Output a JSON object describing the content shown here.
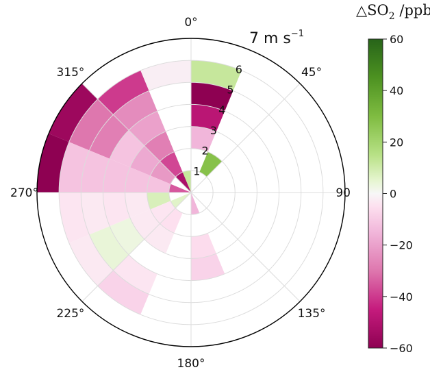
{
  "chart_data": {
    "type": "heatmap",
    "subtype": "polar",
    "title": "",
    "angular_axis": {
      "direction": "clockwise",
      "zero_at": "top",
      "tick_labels": [
        "0°",
        "45°",
        "90",
        "135°",
        "180°",
        "225°",
        "270°",
        "315°"
      ]
    },
    "radial_axis": {
      "tick_labels": [
        "1",
        "2",
        "3",
        "4",
        "5",
        "6",
        "7"
      ],
      "unit_label": "m s",
      "unit_exponent": "−1",
      "range": [
        0,
        7
      ]
    },
    "direction_bin_width_deg": 22.5,
    "speed_bin_width": 1,
    "cells": [
      {
        "dir": 0,
        "speed": 6,
        "value": 12
      },
      {
        "dir": 0,
        "speed": 5,
        "value": -60
      },
      {
        "dir": 0,
        "speed": 4,
        "value": -48
      },
      {
        "dir": 0,
        "speed": 3,
        "value": -15
      },
      {
        "dir": 22.5,
        "speed": 2,
        "value": 28
      },
      {
        "dir": 337.5,
        "speed": 1,
        "value": 12
      },
      {
        "dir": 337.5,
        "speed": 6,
        "value": -2
      },
      {
        "dir": 315,
        "speed": 1,
        "value": -52
      },
      {
        "dir": 315,
        "speed": 2,
        "value": -38
      },
      {
        "dir": 315,
        "speed": 3,
        "value": -28
      },
      {
        "dir": 315,
        "speed": 4,
        "value": -20
      },
      {
        "dir": 315,
        "speed": 5,
        "value": -25
      },
      {
        "dir": 315,
        "speed": 6,
        "value": -40
      },
      {
        "dir": 292.5,
        "speed": 2,
        "value": -22
      },
      {
        "dir": 292.5,
        "speed": 3,
        "value": -18
      },
      {
        "dir": 292.5,
        "speed": 4,
        "value": -12
      },
      {
        "dir": 292.5,
        "speed": 5,
        "value": -28
      },
      {
        "dir": 292.5,
        "speed": 6,
        "value": -30
      },
      {
        "dir": 292.5,
        "speed": 7,
        "value": -56
      },
      {
        "dir": 270,
        "speed": 1,
        "value": -35
      },
      {
        "dir": 270,
        "speed": 2,
        "value": -12
      },
      {
        "dir": 270,
        "speed": 3,
        "value": -12
      },
      {
        "dir": 270,
        "speed": 4,
        "value": -12
      },
      {
        "dir": 270,
        "speed": 5,
        "value": -12
      },
      {
        "dir": 270,
        "speed": 6,
        "value": -12
      },
      {
        "dir": 270,
        "speed": 7,
        "value": -60
      },
      {
        "dir": 247.5,
        "speed": 2,
        "value": 8
      },
      {
        "dir": 247.5,
        "speed": 3,
        "value": -3
      },
      {
        "dir": 247.5,
        "speed": 4,
        "value": -4
      },
      {
        "dir": 247.5,
        "speed": 5,
        "value": -3
      },
      {
        "dir": 247.5,
        "speed": 6,
        "value": -4
      },
      {
        "dir": 225,
        "speed": 1,
        "value": 6
      },
      {
        "dir": 225,
        "speed": 2,
        "value": -4
      },
      {
        "dir": 225,
        "speed": 3,
        "value": -3
      },
      {
        "dir": 225,
        "speed": 4,
        "value": 3
      },
      {
        "dir": 225,
        "speed": 5,
        "value": 4
      },
      {
        "dir": 225,
        "speed": 6,
        "value": -3
      },
      {
        "dir": 202.5,
        "speed": 2,
        "value": -5
      },
      {
        "dir": 202.5,
        "speed": 3,
        "value": -3
      },
      {
        "dir": 202.5,
        "speed": 5,
        "value": -4
      },
      {
        "dir": 202.5,
        "speed": 6,
        "value": -8
      },
      {
        "dir": 157.5,
        "speed": 1,
        "value": -15
      },
      {
        "dir": 157.5,
        "speed": 3,
        "value": -6
      },
      {
        "dir": 157.5,
        "speed": 4,
        "value": -8
      }
    ],
    "colorbar": {
      "title_main": "△SO",
      "title_sub": "2",
      "title_units": " /ppb",
      "range": [
        -60,
        60
      ],
      "tick_values": [
        60,
        40,
        20,
        0,
        -20,
        -40,
        -60
      ],
      "tick_labels": [
        "60",
        "40",
        "20",
        "0",
        "−20",
        "−40",
        "−60"
      ],
      "colormap": "PiYG",
      "stops": [
        {
          "v": -60,
          "c": "#8e0152"
        },
        {
          "v": -45,
          "c": "#c51b7d"
        },
        {
          "v": -30,
          "c": "#de77ae"
        },
        {
          "v": -15,
          "c": "#f1b6da"
        },
        {
          "v": -5,
          "c": "#fde0ef"
        },
        {
          "v": 0,
          "c": "#f7f7f7"
        },
        {
          "v": 5,
          "c": "#e6f5d0"
        },
        {
          "v": 15,
          "c": "#b8e186"
        },
        {
          "v": 30,
          "c": "#7fbc41"
        },
        {
          "v": 45,
          "c": "#4d9221"
        },
        {
          "v": 60,
          "c": "#276419"
        }
      ]
    },
    "grid": true
  }
}
